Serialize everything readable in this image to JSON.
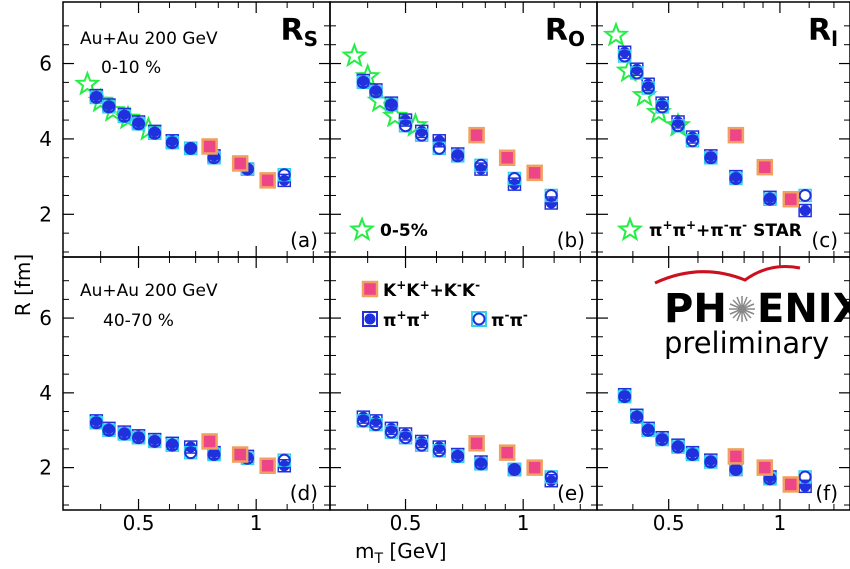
{
  "chart_data": {
    "type": "scatter",
    "ylabel": "R [fm]",
    "xlabel": "m",
    "xlabel_sub": "T",
    "xlabel_unit": " [GeV]",
    "xscale": "log",
    "xlim": [
      0.33,
      1.5
    ],
    "ylim": [
      1.0,
      7.5
    ],
    "x_tick_labels": [
      "0.5",
      "1"
    ],
    "x_ticks": [
      0.5,
      1.0
    ],
    "y_tick_labels": [
      "2",
      "4",
      "6"
    ],
    "y_ticks": [
      2,
      4,
      6
    ],
    "styles": {
      "kaon": {
        "fill": "#ee4488",
        "edge": "#f0a060"
      },
      "piplus": {
        "fill": "#2030dd",
        "edge": "#2030dd"
      },
      "piminus": {
        "fill": "none",
        "edge": "#2030dd",
        "ring": "#30d0ee"
      },
      "star": {
        "fill": "none",
        "edge": "#22ee44"
      }
    },
    "legends": {
      "kaon": {
        "text": "K",
        "super1": "+",
        "mid": "K",
        "super2": "+",
        "plus": "+K",
        "super3": "-",
        "tail": "K",
        "super4": "-"
      },
      "piplus": {
        "text": "π",
        "super1": "+",
        "mid": "π",
        "super2": "+"
      },
      "piminus": {
        "text": "π",
        "super1": "-",
        "mid": "π",
        "super2": "-"
      },
      "star_b": "0-5%",
      "star_c": {
        "a": "π",
        "sa": "+",
        "b": "π",
        "sb": "+",
        "c": "+π",
        "sc": "-",
        "d": "π",
        "sd": "-",
        "e": " STAR"
      }
    },
    "notes": {
      "top_line1": "Au+Au 200 GeV",
      "top_line2": "0-10 %",
      "bottom_line1": "Au+Au 200 GeV",
      "bottom_line2": "40-70 %"
    },
    "logo": {
      "line1a": "PH",
      "line1b": "ENIX",
      "line2": "preliminary"
    },
    "panels": [
      {
        "id": "a",
        "row": 0,
        "col": 0,
        "title": "R",
        "title_sub": "S",
        "letter": "(a)",
        "series": [
          {
            "name": "STAR",
            "style": "star",
            "x": [
              0.37,
              0.4,
              0.43,
              0.47,
              0.53
            ],
            "y": [
              5.45,
              5.0,
              4.75,
              4.55,
              4.25
            ]
          },
          {
            "style": "piplus",
            "x": [
              0.39,
              0.42,
              0.46,
              0.5,
              0.55,
              0.61,
              0.68,
              0.78,
              0.95,
              1.18
            ],
            "y": [
              5.15,
              4.9,
              4.65,
              4.45,
              4.2,
              3.95,
              3.75,
              3.55,
              3.2,
              2.9
            ]
          },
          {
            "style": "piminus",
            "x": [
              0.39,
              0.42,
              0.46,
              0.5,
              0.55,
              0.61,
              0.68,
              0.78,
              0.95,
              1.18
            ],
            "y": [
              5.1,
              4.85,
              4.6,
              4.4,
              4.15,
              3.9,
              3.75,
              3.5,
              3.2,
              3.05
            ]
          },
          {
            "style": "kaon",
            "x": [
              0.76,
              0.91,
              1.07
            ],
            "y": [
              3.8,
              3.35,
              2.9
            ]
          }
        ]
      },
      {
        "id": "b",
        "row": 0,
        "col": 1,
        "title": "R",
        "title_sub": "O",
        "letter": "(b)",
        "series": [
          {
            "name": "STAR",
            "style": "star",
            "x": [
              0.37,
              0.4,
              0.43,
              0.47,
              0.53
            ],
            "y": [
              6.2,
              5.65,
              5.0,
              4.6,
              4.35
            ]
          },
          {
            "style": "piplus",
            "x": [
              0.39,
              0.42,
              0.46,
              0.5,
              0.55,
              0.61,
              0.68,
              0.78,
              0.95,
              1.18
            ],
            "y": [
              5.55,
              5.3,
              4.95,
              4.5,
              4.2,
              3.95,
              3.6,
              3.2,
              2.8,
              2.3
            ]
          },
          {
            "style": "piminus",
            "x": [
              0.39,
              0.42,
              0.46,
              0.5,
              0.55,
              0.61,
              0.68,
              0.78,
              0.95,
              1.18
            ],
            "y": [
              5.5,
              5.25,
              4.9,
              4.35,
              4.1,
              3.75,
              3.55,
              3.3,
              2.95,
              2.5
            ]
          },
          {
            "style": "kaon",
            "x": [
              0.76,
              0.91,
              1.07
            ],
            "y": [
              4.1,
              3.5,
              3.1
            ]
          }
        ]
      },
      {
        "id": "c",
        "row": 0,
        "col": 2,
        "title": "R",
        "title_sub": "l",
        "letter": "(c)",
        "series": [
          {
            "name": "STAR",
            "style": "star",
            "x": [
              0.36,
              0.39,
              0.43,
              0.47,
              0.53
            ],
            "y": [
              6.75,
              5.8,
              5.15,
              4.7,
              4.35
            ]
          },
          {
            "style": "piplus",
            "x": [
              0.38,
              0.41,
              0.44,
              0.48,
              0.53,
              0.58,
              0.65,
              0.76,
              0.94,
              1.17
            ],
            "y": [
              6.3,
              5.85,
              5.45,
              4.95,
              4.45,
              4.05,
              3.55,
              3.0,
              2.45,
              2.1
            ]
          },
          {
            "style": "piminus",
            "x": [
              0.38,
              0.41,
              0.44,
              0.48,
              0.53,
              0.58,
              0.65,
              0.76,
              0.94,
              1.17
            ],
            "y": [
              6.2,
              5.75,
              5.35,
              4.85,
              4.35,
              3.95,
              3.5,
              2.95,
              2.4,
              2.5
            ]
          },
          {
            "style": "kaon",
            "x": [
              0.76,
              0.91,
              1.07
            ],
            "y": [
              4.1,
              3.25,
              2.4
            ]
          }
        ]
      },
      {
        "id": "d",
        "row": 1,
        "col": 0,
        "letter": "(d)",
        "series": [
          {
            "style": "piplus",
            "x": [
              0.39,
              0.42,
              0.46,
              0.5,
              0.55,
              0.61,
              0.68,
              0.78,
              0.95,
              1.18
            ],
            "y": [
              3.25,
              3.05,
              2.95,
              2.85,
              2.75,
              2.65,
              2.55,
              2.4,
              2.3,
              2.05
            ]
          },
          {
            "style": "piminus",
            "x": [
              0.39,
              0.42,
              0.46,
              0.5,
              0.55,
              0.61,
              0.68,
              0.78,
              0.95,
              1.18
            ],
            "y": [
              3.2,
              3.0,
              2.9,
              2.8,
              2.7,
              2.6,
              2.4,
              2.35,
              2.25,
              2.2
            ]
          },
          {
            "style": "kaon",
            "x": [
              0.76,
              0.91,
              1.07
            ],
            "y": [
              2.7,
              2.35,
              2.05
            ]
          }
        ]
      },
      {
        "id": "e",
        "row": 1,
        "col": 1,
        "letter": "(e)",
        "series": [
          {
            "style": "piplus",
            "x": [
              0.39,
              0.42,
              0.46,
              0.5,
              0.55,
              0.61,
              0.68,
              0.78,
              0.95,
              1.18
            ],
            "y": [
              3.35,
              3.25,
              3.05,
              2.9,
              2.7,
              2.55,
              2.35,
              2.15,
              1.95,
              1.65
            ]
          },
          {
            "style": "piminus",
            "x": [
              0.39,
              0.42,
              0.46,
              0.5,
              0.55,
              0.61,
              0.68,
              0.78,
              0.95,
              1.18
            ],
            "y": [
              3.25,
              3.15,
              2.95,
              2.8,
              2.6,
              2.45,
              2.3,
              2.1,
              1.95,
              1.75
            ]
          },
          {
            "style": "kaon",
            "x": [
              0.76,
              0.91,
              1.07
            ],
            "y": [
              2.65,
              2.4,
              2.0
            ]
          }
        ]
      },
      {
        "id": "f",
        "row": 1,
        "col": 2,
        "letter": "(f)",
        "series": [
          {
            "style": "piplus",
            "x": [
              0.38,
              0.41,
              0.44,
              0.48,
              0.53,
              0.58,
              0.65,
              0.76,
              0.94,
              1.17
            ],
            "y": [
              3.95,
              3.4,
              3.05,
              2.8,
              2.6,
              2.4,
              2.2,
              1.95,
              1.75,
              1.5
            ]
          },
          {
            "style": "piminus",
            "x": [
              0.38,
              0.41,
              0.44,
              0.48,
              0.53,
              0.58,
              0.65,
              0.76,
              0.94,
              1.17
            ],
            "y": [
              3.9,
              3.35,
              3.0,
              2.75,
              2.55,
              2.35,
              2.15,
              1.95,
              1.7,
              1.75
            ]
          },
          {
            "style": "kaon",
            "x": [
              0.76,
              0.91,
              1.07
            ],
            "y": [
              2.3,
              2.0,
              1.55
            ]
          }
        ]
      }
    ]
  }
}
